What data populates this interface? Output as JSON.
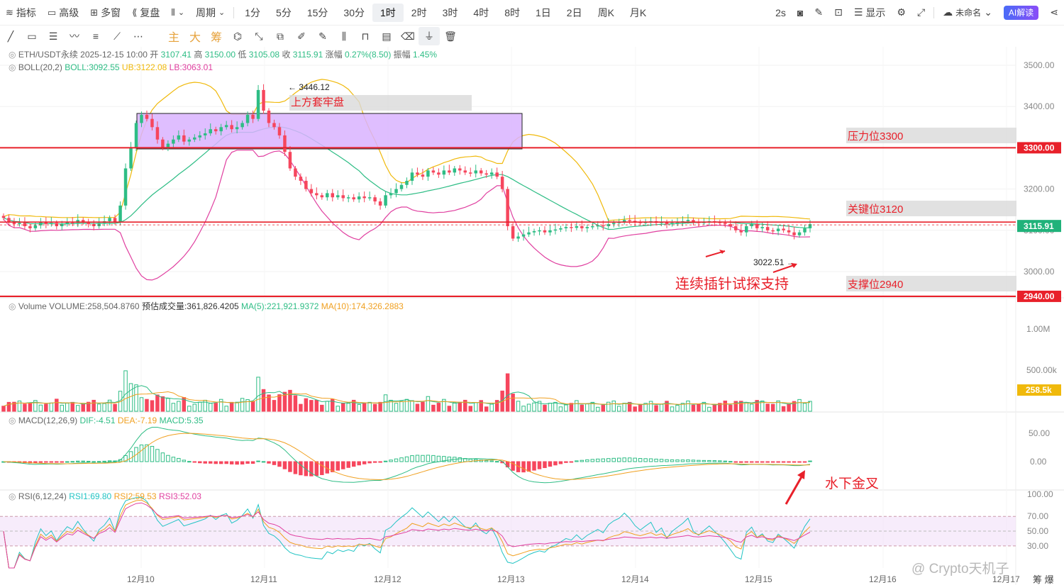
{
  "topbar": {
    "left": [
      {
        "icon": "indicator-icon",
        "label": "指标"
      },
      {
        "icon": "calendar-icon",
        "label": "高级"
      },
      {
        "icon": "grid-icon",
        "label": "多窗"
      },
      {
        "icon": "replay-icon",
        "label": "复盘"
      },
      {
        "icon": "candle-type-icon",
        "label": ""
      },
      {
        "icon": "",
        "label": "周期"
      }
    ],
    "periods": [
      "1分",
      "5分",
      "15分",
      "30分",
      "1时",
      "2时",
      "3时",
      "4时",
      "8时",
      "1日",
      "2日",
      "周K",
      "月K"
    ],
    "active_period": "1时",
    "right": {
      "refresh": "2s",
      "display_label": "显示",
      "layout_name": "未命名",
      "ai_label": "AI解读"
    }
  },
  "toolbar2": {
    "tools": [
      "line-tool-icon",
      "rect-tool-icon",
      "parallel-tool-icon",
      "wave-tool-icon",
      "fib-tool-icon",
      "ray-tool-icon",
      "more-icon"
    ],
    "text_tools": [
      "主",
      "大",
      "筹"
    ],
    "tools_right": [
      "magnet-icon",
      "measure-icon",
      "copy-icon",
      "pen-icon",
      "brush-icon",
      "pattern-icon",
      "lock-icon",
      "note-icon",
      "eraser-icon",
      "filter-icon",
      "trash-icon"
    ]
  },
  "header": {
    "symbol": "ETH/USDT永续",
    "datetime": "2025-12-15 10:00",
    "open_label": "开",
    "open": "3107.41",
    "high_label": "高",
    "high": "3150.00",
    "low_label": "低",
    "low": "3105.08",
    "close_label": "收",
    "close": "3115.91",
    "change_label": "涨幅",
    "change": "0.27%(8.50)",
    "amp_label": "振幅",
    "amp": "1.45%"
  },
  "legends": {
    "boll": {
      "name": "BOLL(20,2)",
      "mid": "BOLL:3092.55",
      "ub": "UB:3122.08",
      "lb": "LB:3063.01"
    },
    "volume": {
      "name": "Volume",
      "vol": "VOLUME:258,504.8760",
      "est": "预估成交量:361,826.4205",
      "ma5": "MA(5):221,921.9372",
      "ma10": "MA(10):174,326.2883"
    },
    "macd": {
      "name": "MACD(12,26,9)",
      "dif": "DIF:-4.51",
      "dea": "DEA:-7.19",
      "macd": "MACD:5.35"
    },
    "rsi": {
      "name": "RSI(6,12,24)",
      "rsi1": "RSI1:69.80",
      "rsi2": "RSI2:59.53",
      "rsi3": "RSI3:52.03"
    }
  },
  "annotations": {
    "box_label": "上方套牢盘",
    "resistance_label": "压力位3300",
    "key_label": "关键位3120",
    "support_label": "支撑位2940",
    "pin_label": "连续插针试探支持",
    "golden_cross": "水下金叉",
    "high_mark": "3446.12",
    "low_mark": "3022.51",
    "line_3300_tag": "3300.00",
    "line_2940_tag": "2940.00",
    "last_price_tag": "3115.91",
    "vol_tag": "258.5k",
    "watermark": "@ Crypto天机子",
    "bottom_right": "筹 爆"
  },
  "colors": {
    "up": "#2ebd85",
    "down": "#f6465d",
    "boll_ub": "#f0b90b",
    "boll_mid": "#2ebd85",
    "boll_lb": "#e040a0",
    "ma5": "#2ebd85",
    "ma10": "#f0a020",
    "dif": "#2ebd85",
    "dea": "#f0a020",
    "rsi1": "#22c4c4",
    "rsi2": "#f0a020",
    "rsi3": "#e040a0",
    "annotation_red": "#e8202a",
    "box_fill": "#d9b3ff"
  },
  "chart_data": {
    "type": "candlestick",
    "price_axis": [
      "3500.00",
      "3400.00",
      "3300.00",
      "3200.00",
      "3100.00",
      "3000.00"
    ],
    "volume_axis": [
      "1.00M",
      "500.00k"
    ],
    "macd_axis": [
      "50.00",
      "0.00"
    ],
    "rsi_axis": [
      "100.00",
      "70.00",
      "50.00",
      "30.00"
    ],
    "ylim": [
      2930,
      3520
    ],
    "x_labels": [
      "12月10",
      "12月11",
      "12月12",
      "12月13",
      "12月14",
      "12月15",
      "12月16",
      "12月17"
    ],
    "horizontal_lines": [
      3300,
      3120,
      2940
    ],
    "close_series": [
      3130,
      3120,
      3115,
      3118,
      3110,
      3105,
      3112,
      3120,
      3115,
      3118,
      3110,
      3115,
      3120,
      3118,
      3125,
      3120,
      3115,
      3110,
      3118,
      3122,
      3130,
      3120,
      3160,
      3250,
      3300,
      3360,
      3380,
      3370,
      3350,
      3320,
      3300,
      3310,
      3320,
      3330,
      3315,
      3320,
      3325,
      3330,
      3335,
      3345,
      3340,
      3350,
      3355,
      3345,
      3350,
      3360,
      3380,
      3370,
      3440,
      3390,
      3360,
      3350,
      3330,
      3290,
      3250,
      3230,
      3220,
      3200,
      3190,
      3185,
      3180,
      3190,
      3180,
      3185,
      3178,
      3180,
      3175,
      3182,
      3178,
      3180,
      3170,
      3160,
      3185,
      3190,
      3200,
      3210,
      3220,
      3240,
      3235,
      3230,
      3245,
      3240,
      3235,
      3245,
      3240,
      3250,
      3245,
      3240,
      3238,
      3245,
      3238,
      3235,
      3240,
      3230,
      3200,
      3110,
      3080,
      3085,
      3090,
      3095,
      3098,
      3100,
      3095,
      3100,
      3102,
      3105,
      3108,
      3106,
      3110,
      3105,
      3108,
      3110,
      3112,
      3110,
      3115,
      3118,
      3120,
      3125,
      3123,
      3120,
      3118,
      3120,
      3122,
      3118,
      3120,
      3115,
      3118,
      3120,
      3122,
      3125,
      3120,
      3118,
      3120,
      3122,
      3120,
      3118,
      3115,
      3110,
      3100,
      3095,
      3110,
      3115,
      3105,
      3108,
      3100,
      3098,
      3104,
      3100,
      3095,
      3088,
      3095,
      3105,
      3115
    ]
  }
}
